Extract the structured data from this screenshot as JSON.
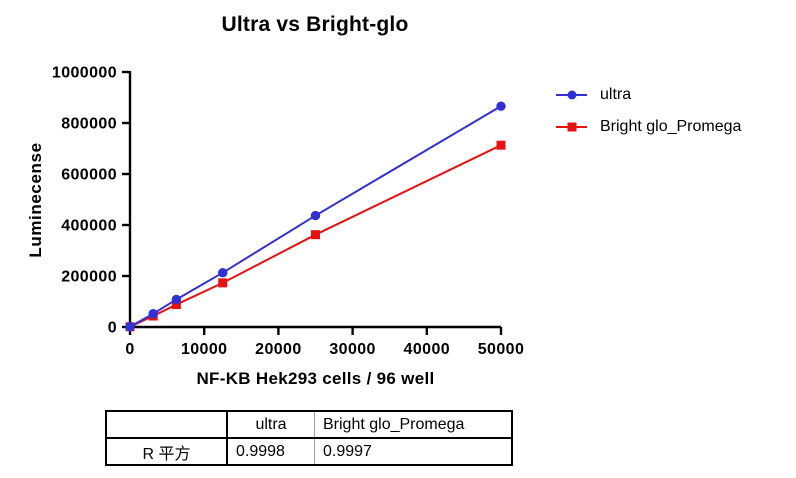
{
  "chart_data": {
    "type": "line",
    "title": "Ultra vs Bright-glo",
    "xlabel": "NF-KB Hek293 cells / 96 well",
    "ylabel": "Luminecense",
    "x": [
      0,
      3125,
      6250,
      12500,
      25000,
      50000
    ],
    "series": [
      {
        "name": "ultra",
        "color": "#3030d4",
        "marker": "circle",
        "values": [
          1000,
          52000,
          108000,
          213000,
          437000,
          866000
        ]
      },
      {
        "name": "Bright glo_Promega",
        "color": "#e61212",
        "marker": "square",
        "values": [
          1000,
          43000,
          88000,
          173000,
          362000,
          713000
        ]
      }
    ],
    "xlim": [
      0,
      50000
    ],
    "ylim": [
      0,
      1000000
    ],
    "x_ticks": [
      0,
      10000,
      20000,
      30000,
      40000,
      50000
    ],
    "y_ticks": [
      0,
      200000,
      400000,
      600000,
      800000,
      1000000
    ],
    "grid": false,
    "legend_position": "right",
    "axis_color": "#000000"
  },
  "table": {
    "headers": [
      "",
      "ultra",
      "Bright glo_Promega"
    ],
    "rows": [
      [
        "R 平方",
        "0.9998",
        "0.9997"
      ]
    ]
  }
}
